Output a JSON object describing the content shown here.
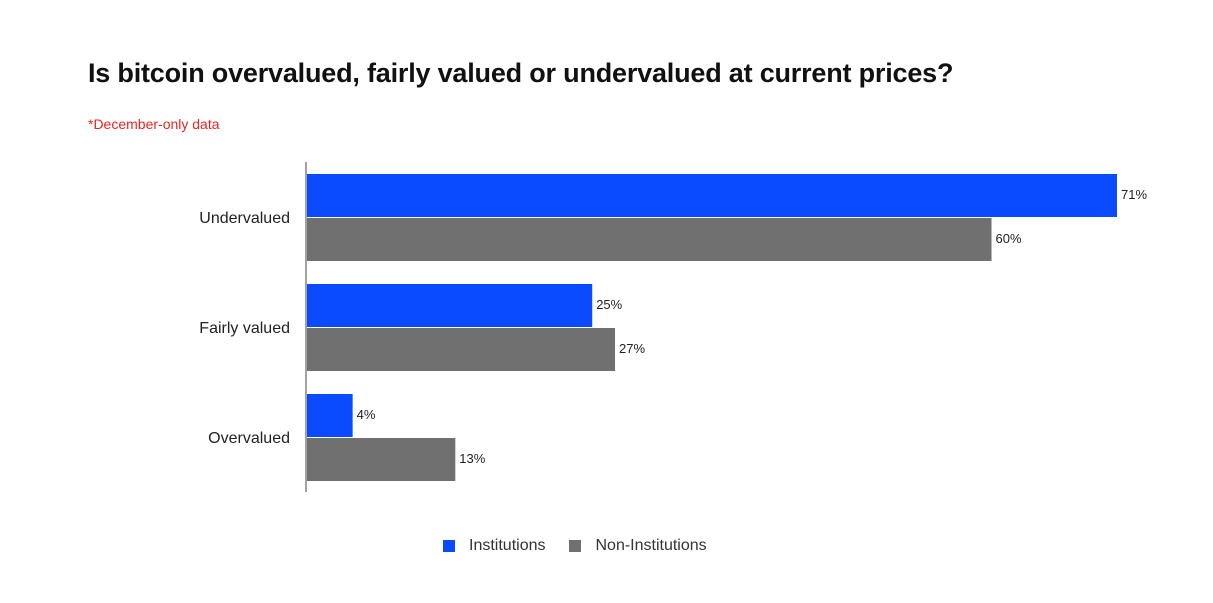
{
  "colors": {
    "institutions": "#0a4bff",
    "non_institutions": "#707070",
    "note": "#e8261f"
  },
  "chart_data": {
    "type": "bar",
    "orientation": "horizontal",
    "title": "Is bitcoin overvalued, fairly valued or undervalued at current prices?",
    "subtitle": "*December-only data",
    "categories": [
      "Undervalued",
      "Fairly valued",
      "Overvalued"
    ],
    "series": [
      {
        "name": "Institutions",
        "values": [
          71,
          25,
          4
        ],
        "labels": [
          "71%",
          "25%",
          "4%"
        ]
      },
      {
        "name": "Non-Institutions",
        "values": [
          60,
          27,
          13
        ],
        "labels": [
          "60%",
          "27%",
          "13%"
        ]
      }
    ],
    "xlim": [
      0,
      71
    ],
    "unit": "%",
    "grid": false,
    "legend": "bottom"
  }
}
